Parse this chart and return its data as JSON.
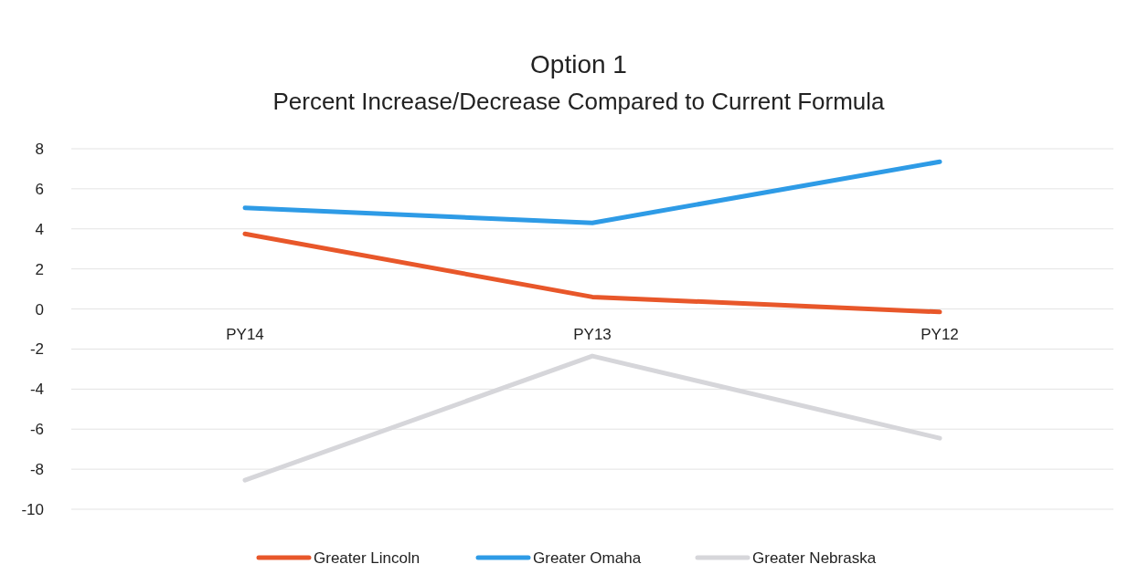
{
  "chart_data": {
    "type": "line",
    "title": "Option 1",
    "subtitle": "Percent Increase/Decrease Compared to Current Formula",
    "categories": [
      "PY14",
      "PY13",
      "PY12"
    ],
    "series": [
      {
        "name": "Greater Lincoln",
        "color": "#e8572a",
        "values": [
          3.75,
          0.6,
          -0.15
        ]
      },
      {
        "name": "Greater Omaha",
        "color": "#2e9be6",
        "values": [
          5.05,
          4.3,
          7.35
        ]
      },
      {
        "name": "Greater Nebraska",
        "color": "#d6d6da",
        "values": [
          -8.55,
          -2.35,
          -6.45
        ]
      }
    ],
    "ylim": [
      -10,
      8
    ],
    "yticks": [
      -10,
      -8,
      -6,
      -4,
      -2,
      0,
      2,
      4,
      6,
      8
    ],
    "grid": "y",
    "legend": "bottom",
    "marker": "none",
    "line_style": "solid"
  }
}
